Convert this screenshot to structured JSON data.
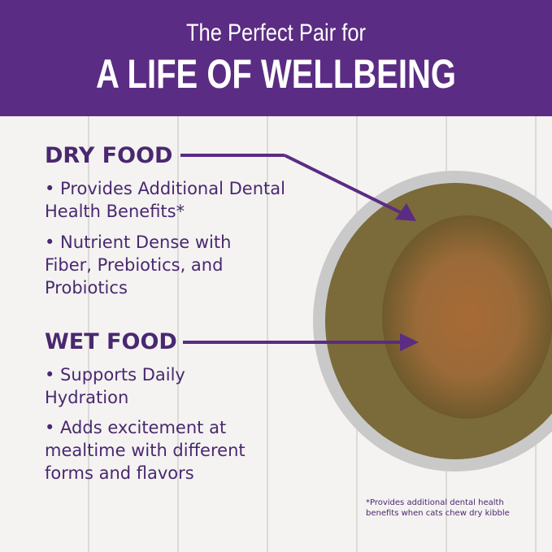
{
  "header": {
    "line1": "The Perfect Pair for",
    "line2": "A LIFE OF WELLBEING"
  },
  "dry": {
    "title": "DRY FOOD",
    "bullets": [
      "• Provides Additional Dental Health Benefits*",
      "• Nutrient Dense with Fiber, Prebiotics, and Probiotics"
    ]
  },
  "wet": {
    "title": "WET FOOD",
    "bullets": [
      "• Supports Daily Hydration",
      "• Adds excitement at mealtime with different forms and flavors"
    ]
  },
  "footnote": "*Provides additional dental health benefits when cats chew dry kibble",
  "colors": {
    "brand_purple": "#5b2c83",
    "text_purple": "#4a2870"
  }
}
